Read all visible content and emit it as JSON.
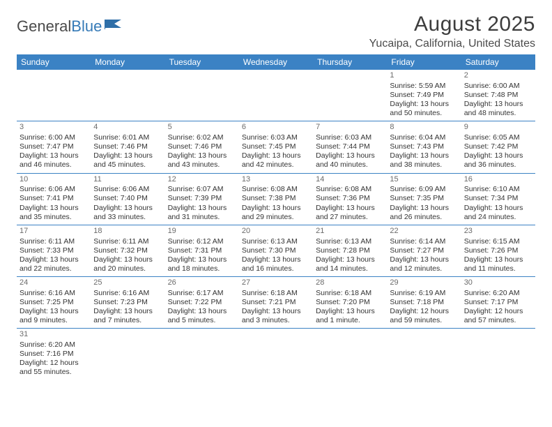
{
  "logo": {
    "text1": "General",
    "text2": "Blue"
  },
  "header": {
    "month_title": "August 2025",
    "location": "Yucaipa, California, United States"
  },
  "colors": {
    "header_bg": "#3b82c4",
    "header_text": "#ffffff",
    "daynum": "#6b6b6b",
    "body_text": "#333333",
    "rule": "#3b82c4"
  },
  "weekdays": [
    "Sunday",
    "Monday",
    "Tuesday",
    "Wednesday",
    "Thursday",
    "Friday",
    "Saturday"
  ],
  "weeks": [
    [
      null,
      null,
      null,
      null,
      null,
      {
        "d": "1",
        "sr": "5:59 AM",
        "ss": "7:49 PM",
        "dl": "13 hours and 50 minutes."
      },
      {
        "d": "2",
        "sr": "6:00 AM",
        "ss": "7:48 PM",
        "dl": "13 hours and 48 minutes."
      }
    ],
    [
      {
        "d": "3",
        "sr": "6:00 AM",
        "ss": "7:47 PM",
        "dl": "13 hours and 46 minutes."
      },
      {
        "d": "4",
        "sr": "6:01 AM",
        "ss": "7:46 PM",
        "dl": "13 hours and 45 minutes."
      },
      {
        "d": "5",
        "sr": "6:02 AM",
        "ss": "7:46 PM",
        "dl": "13 hours and 43 minutes."
      },
      {
        "d": "6",
        "sr": "6:03 AM",
        "ss": "7:45 PM",
        "dl": "13 hours and 42 minutes."
      },
      {
        "d": "7",
        "sr": "6:03 AM",
        "ss": "7:44 PM",
        "dl": "13 hours and 40 minutes."
      },
      {
        "d": "8",
        "sr": "6:04 AM",
        "ss": "7:43 PM",
        "dl": "13 hours and 38 minutes."
      },
      {
        "d": "9",
        "sr": "6:05 AM",
        "ss": "7:42 PM",
        "dl": "13 hours and 36 minutes."
      }
    ],
    [
      {
        "d": "10",
        "sr": "6:06 AM",
        "ss": "7:41 PM",
        "dl": "13 hours and 35 minutes."
      },
      {
        "d": "11",
        "sr": "6:06 AM",
        "ss": "7:40 PM",
        "dl": "13 hours and 33 minutes."
      },
      {
        "d": "12",
        "sr": "6:07 AM",
        "ss": "7:39 PM",
        "dl": "13 hours and 31 minutes."
      },
      {
        "d": "13",
        "sr": "6:08 AM",
        "ss": "7:38 PM",
        "dl": "13 hours and 29 minutes."
      },
      {
        "d": "14",
        "sr": "6:08 AM",
        "ss": "7:36 PM",
        "dl": "13 hours and 27 minutes."
      },
      {
        "d": "15",
        "sr": "6:09 AM",
        "ss": "7:35 PM",
        "dl": "13 hours and 26 minutes."
      },
      {
        "d": "16",
        "sr": "6:10 AM",
        "ss": "7:34 PM",
        "dl": "13 hours and 24 minutes."
      }
    ],
    [
      {
        "d": "17",
        "sr": "6:11 AM",
        "ss": "7:33 PM",
        "dl": "13 hours and 22 minutes."
      },
      {
        "d": "18",
        "sr": "6:11 AM",
        "ss": "7:32 PM",
        "dl": "13 hours and 20 minutes."
      },
      {
        "d": "19",
        "sr": "6:12 AM",
        "ss": "7:31 PM",
        "dl": "13 hours and 18 minutes."
      },
      {
        "d": "20",
        "sr": "6:13 AM",
        "ss": "7:30 PM",
        "dl": "13 hours and 16 minutes."
      },
      {
        "d": "21",
        "sr": "6:13 AM",
        "ss": "7:28 PM",
        "dl": "13 hours and 14 minutes."
      },
      {
        "d": "22",
        "sr": "6:14 AM",
        "ss": "7:27 PM",
        "dl": "13 hours and 12 minutes."
      },
      {
        "d": "23",
        "sr": "6:15 AM",
        "ss": "7:26 PM",
        "dl": "13 hours and 11 minutes."
      }
    ],
    [
      {
        "d": "24",
        "sr": "6:16 AM",
        "ss": "7:25 PM",
        "dl": "13 hours and 9 minutes."
      },
      {
        "d": "25",
        "sr": "6:16 AM",
        "ss": "7:23 PM",
        "dl": "13 hours and 7 minutes."
      },
      {
        "d": "26",
        "sr": "6:17 AM",
        "ss": "7:22 PM",
        "dl": "13 hours and 5 minutes."
      },
      {
        "d": "27",
        "sr": "6:18 AM",
        "ss": "7:21 PM",
        "dl": "13 hours and 3 minutes."
      },
      {
        "d": "28",
        "sr": "6:18 AM",
        "ss": "7:20 PM",
        "dl": "13 hours and 1 minute."
      },
      {
        "d": "29",
        "sr": "6:19 AM",
        "ss": "7:18 PM",
        "dl": "12 hours and 59 minutes."
      },
      {
        "d": "30",
        "sr": "6:20 AM",
        "ss": "7:17 PM",
        "dl": "12 hours and 57 minutes."
      }
    ],
    [
      {
        "d": "31",
        "sr": "6:20 AM",
        "ss": "7:16 PM",
        "dl": "12 hours and 55 minutes."
      },
      null,
      null,
      null,
      null,
      null,
      null
    ]
  ],
  "labels": {
    "sunrise": "Sunrise: ",
    "sunset": "Sunset: ",
    "daylight": "Daylight: "
  }
}
